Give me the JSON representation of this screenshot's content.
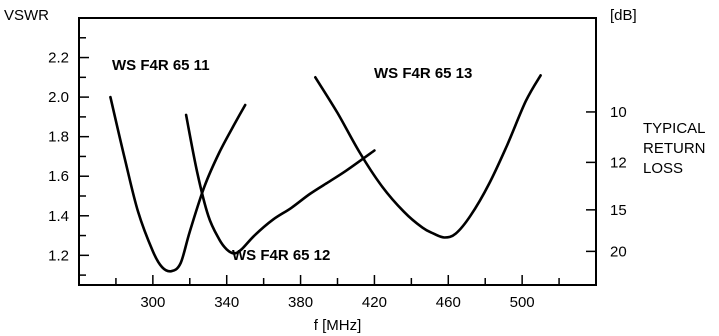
{
  "chart_data": {
    "type": "line",
    "ylabel": "VSWR",
    "y2label": "[dB]",
    "xlabel": "f [MHz]",
    "right_caption": [
      "TYPICAL",
      "RETURN",
      "LOSS"
    ],
    "xlim": [
      260,
      540
    ],
    "ylim": [
      1.05,
      2.4
    ],
    "x_ticks": [
      300,
      340,
      380,
      420,
      460,
      500
    ],
    "y_ticks": [
      1.2,
      1.4,
      1.6,
      1.8,
      2.0,
      2.2
    ],
    "y2_ticks": [
      {
        "label": "10",
        "vswr": 1.925
      },
      {
        "label": "12",
        "vswr": 1.67
      },
      {
        "label": "15",
        "vswr": 1.43
      },
      {
        "label": "20",
        "vswr": 1.22
      }
    ],
    "grid": false,
    "series": [
      {
        "name": "WS F4R 65 11",
        "x": [
          277,
          285,
          292,
          300,
          305,
          310,
          315,
          320,
          328,
          336,
          344,
          350
        ],
        "y": [
          2.0,
          1.68,
          1.42,
          1.22,
          1.14,
          1.12,
          1.16,
          1.32,
          1.55,
          1.72,
          1.86,
          1.96
        ]
      },
      {
        "name": "WS F4R 65 12",
        "x": [
          318,
          324,
          330,
          336,
          340,
          344,
          348,
          355,
          365,
          375,
          385,
          395,
          405,
          420
        ],
        "y": [
          1.91,
          1.62,
          1.4,
          1.28,
          1.23,
          1.21,
          1.23,
          1.3,
          1.38,
          1.44,
          1.51,
          1.57,
          1.63,
          1.73
        ]
      },
      {
        "name": "WS F4R 65 13",
        "x": [
          388,
          400,
          412,
          424,
          436,
          446,
          452,
          458,
          464,
          472,
          482,
          492,
          502,
          510
        ],
        "y": [
          2.1,
          1.92,
          1.72,
          1.55,
          1.42,
          1.34,
          1.31,
          1.29,
          1.31,
          1.4,
          1.56,
          1.76,
          1.98,
          2.11
        ]
      }
    ]
  }
}
